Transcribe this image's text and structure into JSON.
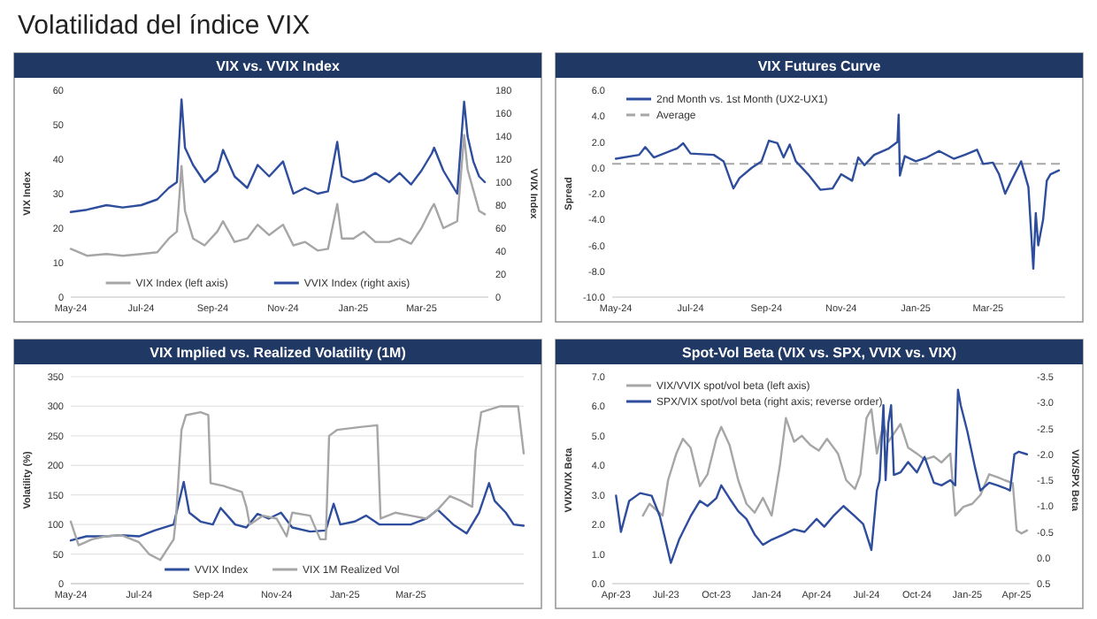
{
  "chart_data": [
    {
      "type": "other",
      "title": "Volatilidad del índice VIX"
    },
    {
      "type": "line",
      "title": "VIX vs. VVIX Index",
      "ylabel": "VIX Index",
      "y2label": "VVIX Index",
      "legend": "bottom",
      "xlim": [
        "2024-05-01",
        "2025-04-28"
      ],
      "xticks": [
        {
          "value": "2024-05-01",
          "label": "May-24"
        },
        {
          "value": "2024-07-01",
          "label": "Jul-24"
        },
        {
          "value": "2024-09-01",
          "label": "Sep-24"
        },
        {
          "value": "2024-11-01",
          "label": "Nov-24"
        },
        {
          "value": "2025-01-01",
          "label": "Jan-25"
        },
        {
          "value": "2025-03-01",
          "label": "Mar-25"
        }
      ],
      "ylim": [
        0,
        60
      ],
      "yticks": [
        0,
        10,
        20,
        30,
        40,
        50,
        60
      ],
      "y2lim": [
        0,
        180
      ],
      "y2ticks": [
        0,
        20,
        40,
        60,
        80,
        100,
        120,
        140,
        160,
        180
      ],
      "x": [
        "2024-05-01",
        "2024-05-15",
        "2024-06-01",
        "2024-06-15",
        "2024-07-01",
        "2024-07-15",
        "2024-07-25",
        "2024-08-01",
        "2024-08-05",
        "2024-08-08",
        "2024-08-15",
        "2024-08-25",
        "2024-09-05",
        "2024-09-10",
        "2024-09-20",
        "2024-10-01",
        "2024-10-10",
        "2024-10-20",
        "2024-11-01",
        "2024-11-10",
        "2024-11-20",
        "2024-12-01",
        "2024-12-10",
        "2024-12-18",
        "2024-12-22",
        "2025-01-01",
        "2025-01-10",
        "2025-01-20",
        "2025-02-01",
        "2025-02-10",
        "2025-02-20",
        "2025-03-01",
        "2025-03-10",
        "2025-03-12",
        "2025-03-20",
        "2025-04-01",
        "2025-04-07",
        "2025-04-10",
        "2025-04-15",
        "2025-04-20",
        "2025-04-25"
      ],
      "series": [
        {
          "name": "VIX Index (left axis)",
          "color": "#a6a6a6",
          "values": [
            14,
            12,
            12.5,
            12,
            12.5,
            13,
            17,
            19,
            38,
            25,
            17,
            15,
            19,
            22,
            16,
            17,
            21,
            18,
            21,
            15,
            16,
            13.5,
            14,
            27,
            17,
            17,
            19,
            16,
            16,
            17,
            15.5,
            20,
            26,
            27,
            20,
            22,
            47,
            37,
            31,
            25,
            24
          ]
        },
        {
          "name": "VVIX Index (right axis)",
          "color": "#2e4d9c",
          "axis": "y2",
          "values": [
            74,
            76,
            80,
            78,
            80,
            85,
            95,
            100,
            172,
            130,
            115,
            100,
            110,
            128,
            105,
            95,
            115,
            105,
            118,
            90,
            95,
            90,
            92,
            135,
            105,
            100,
            102,
            108,
            100,
            108,
            98,
            110,
            125,
            130,
            110,
            90,
            170,
            140,
            118,
            105,
            100
          ]
        }
      ]
    },
    {
      "type": "line",
      "title": "VIX Futures Curve",
      "ylabel": "Spread",
      "legend": "top left",
      "xlim": [
        "2024-04-28",
        "2025-05-03"
      ],
      "xticks": [
        {
          "value": "2024-05-01",
          "label": "May-24"
        },
        {
          "value": "2024-07-01",
          "label": "Jul-24"
        },
        {
          "value": "2024-09-01",
          "label": "Sep-24"
        },
        {
          "value": "2024-11-01",
          "label": "Nov-24"
        },
        {
          "value": "2025-01-01",
          "label": "Jan-25"
        },
        {
          "value": "2025-03-01",
          "label": "Mar-25"
        }
      ],
      "ylim": [
        -10,
        6
      ],
      "yticks": [
        {
          "value": -10,
          "label": "-10.0"
        },
        {
          "value": -8,
          "label": "-8.0"
        },
        {
          "value": -6,
          "label": "-6.0"
        },
        {
          "value": -4,
          "label": "-4.0"
        },
        {
          "value": -2,
          "label": "-2.0"
        },
        {
          "value": 0,
          "label": "0.0"
        },
        {
          "value": 2,
          "label": "2.0"
        },
        {
          "value": 4,
          "label": "4.0"
        },
        {
          "value": 6,
          "label": "6.0"
        }
      ],
      "ref_lines": [
        {
          "axis": "y",
          "value": 0.3,
          "label": "Average",
          "color": "#a6a6a6",
          "line_style": "dashed"
        }
      ],
      "series": [
        {
          "name": "2nd Month vs. 1st Month (UX2-UX1)",
          "color": "#2e4d9c",
          "x": [
            "2024-05-01",
            "2024-05-20",
            "2024-05-25",
            "2024-06-01",
            "2024-06-20",
            "2024-06-25",
            "2024-07-01",
            "2024-07-20",
            "2024-07-28",
            "2024-08-05",
            "2024-08-10",
            "2024-08-20",
            "2024-08-28",
            "2024-09-03",
            "2024-09-10",
            "2024-09-15",
            "2024-09-20",
            "2024-09-25",
            "2024-10-05",
            "2024-10-15",
            "2024-10-25",
            "2024-11-01",
            "2024-11-10",
            "2024-11-15",
            "2024-11-20",
            "2024-11-28",
            "2024-12-10",
            "2024-12-17",
            "2024-12-18",
            "2024-12-19",
            "2024-12-23",
            "2025-01-01",
            "2025-01-10",
            "2025-01-20",
            "2025-02-01",
            "2025-02-10",
            "2025-02-20",
            "2025-02-25",
            "2025-03-05",
            "2025-03-10",
            "2025-03-15",
            "2025-03-20",
            "2025-03-28",
            "2025-04-03",
            "2025-04-07",
            "2025-04-09",
            "2025-04-11",
            "2025-04-15",
            "2025-04-18",
            "2025-04-21",
            "2025-04-28"
          ],
          "values": [
            0.7,
            1.0,
            1.6,
            0.8,
            1.5,
            1.9,
            1.1,
            1.0,
            0.5,
            -1.6,
            -0.8,
            0.0,
            0.5,
            2.1,
            1.9,
            0.8,
            1.8,
            0.5,
            -0.5,
            -1.7,
            -1.6,
            -0.5,
            -1.0,
            0.8,
            0.2,
            1.0,
            1.5,
            2.0,
            4.1,
            -0.6,
            0.9,
            0.5,
            0.8,
            1.3,
            0.7,
            1.0,
            1.4,
            0.3,
            0.4,
            -0.5,
            -2.0,
            -1.0,
            0.5,
            -1.5,
            -7.8,
            -3.5,
            -6.0,
            -4.0,
            -1.0,
            -0.5,
            -0.2
          ]
        }
      ]
    },
    {
      "type": "line",
      "title": "VIX Implied vs. Realized Volatility (1M)",
      "ylabel": "Volatility (%)",
      "legend": "bottom",
      "grid": "y",
      "xlim": [
        "2024-05-01",
        "2025-06-10"
      ],
      "xticks": [
        {
          "value": "2024-05-01",
          "label": "May-24"
        },
        {
          "value": "2024-07-01",
          "label": "Jul-24"
        },
        {
          "value": "2024-09-01",
          "label": "Sep-24"
        },
        {
          "value": "2024-11-01",
          "label": "Nov-24"
        },
        {
          "value": "2025-01-01",
          "label": "Jan-25"
        },
        {
          "value": "2025-03-01",
          "label": "Mar-25"
        }
      ],
      "ylim": [
        0,
        350
      ],
      "yticks": [
        0,
        50,
        100,
        150,
        200,
        250,
        300,
        350
      ],
      "series": [
        {
          "name": "VVIX Index",
          "color": "#2e4d9c",
          "x": [
            "2024-05-01",
            "2024-05-15",
            "2024-06-01",
            "2024-06-15",
            "2024-07-01",
            "2024-07-15",
            "2024-08-01",
            "2024-08-10",
            "2024-08-15",
            "2024-08-25",
            "2024-09-05",
            "2024-09-12",
            "2024-09-25",
            "2024-10-05",
            "2024-10-15",
            "2024-10-25",
            "2024-11-05",
            "2024-11-15",
            "2024-12-01",
            "2024-12-15",
            "2024-12-22",
            "2024-12-28",
            "2025-01-10",
            "2025-01-20",
            "2025-02-01",
            "2025-02-15",
            "2025-03-01",
            "2025-03-15",
            "2025-03-25",
            "2025-04-08",
            "2025-04-20",
            "2025-05-01",
            "2025-05-10",
            "2025-05-15",
            "2025-05-25",
            "2025-06-01",
            "2025-06-10"
          ],
          "values": [
            73,
            80,
            80,
            82,
            80,
            90,
            100,
            172,
            120,
            105,
            100,
            128,
            100,
            95,
            118,
            110,
            120,
            95,
            88,
            90,
            135,
            100,
            105,
            115,
            100,
            100,
            100,
            110,
            125,
            100,
            85,
            120,
            170,
            140,
            120,
            100,
            98
          ]
        },
        {
          "name": "VIX 1M Realized Vol",
          "color": "#a6a6a6",
          "x": [
            "2024-05-01",
            "2024-05-08",
            "2024-05-20",
            "2024-06-01",
            "2024-06-15",
            "2024-07-01",
            "2024-07-10",
            "2024-07-20",
            "2024-08-01",
            "2024-08-03",
            "2024-08-08",
            "2024-08-12",
            "2024-08-25",
            "2024-09-01",
            "2024-09-03",
            "2024-09-15",
            "2024-10-01",
            "2024-10-05",
            "2024-10-08",
            "2024-10-20",
            "2024-11-01",
            "2024-11-10",
            "2024-11-15",
            "2024-12-01",
            "2024-12-10",
            "2024-12-15",
            "2024-12-18",
            "2024-12-25",
            "2025-01-15",
            "2025-01-30",
            "2025-02-02",
            "2025-02-15",
            "2025-03-01",
            "2025-03-15",
            "2025-03-25",
            "2025-04-05",
            "2025-04-15",
            "2025-04-25",
            "2025-04-28",
            "2025-05-03",
            "2025-05-20",
            "2025-06-05",
            "2025-06-10"
          ],
          "values": [
            105,
            65,
            75,
            80,
            82,
            70,
            50,
            40,
            75,
            110,
            260,
            285,
            290,
            285,
            170,
            165,
            155,
            130,
            100,
            115,
            110,
            80,
            120,
            115,
            75,
            75,
            250,
            260,
            265,
            268,
            110,
            120,
            115,
            110,
            125,
            148,
            140,
            130,
            225,
            290,
            300,
            300,
            220
          ]
        }
      ]
    },
    {
      "type": "line",
      "title": "Spot-Vol Beta (VIX vs. SPX, VVIX vs. VIX)",
      "ylabel": "VVIX/VIX Beta",
      "y2label": "VIX/SPX Beta",
      "legend": "top left",
      "xlim": [
        "2023-03-25",
        "2025-04-25"
      ],
      "xticks": [
        {
          "value": "2023-04-01",
          "label": "Apr-23"
        },
        {
          "value": "2023-07-01",
          "label": "Jul-23"
        },
        {
          "value": "2023-10-01",
          "label": "Oct-23"
        },
        {
          "value": "2024-01-01",
          "label": "Jan-24"
        },
        {
          "value": "2024-04-01",
          "label": "Apr-24"
        },
        {
          "value": "2024-07-01",
          "label": "Jul-24"
        },
        {
          "value": "2024-10-01",
          "label": "Oct-24"
        },
        {
          "value": "2025-01-01",
          "label": "Jan-25"
        },
        {
          "value": "2025-04-01",
          "label": "Apr-25"
        }
      ],
      "ylim": [
        0,
        7
      ],
      "yticks": [
        {
          "value": 0,
          "label": "0.0"
        },
        {
          "value": 1,
          "label": "1.0"
        },
        {
          "value": 2,
          "label": "2.0"
        },
        {
          "value": 3,
          "label": "3.0"
        },
        {
          "value": 4,
          "label": "4.0"
        },
        {
          "value": 5,
          "label": "5.0"
        },
        {
          "value": 6,
          "label": "6.0"
        },
        {
          "value": 7,
          "label": "7.0"
        }
      ],
      "y2lim": [
        0.5,
        -3.5
      ],
      "y2ticks": [
        {
          "value": 0.5,
          "label": "0.5"
        },
        {
          "value": 0,
          "label": "0.0"
        },
        {
          "value": -0.5,
          "label": "-0.5"
        },
        {
          "value": -1,
          "label": "-1.0"
        },
        {
          "value": -1.5,
          "label": "-1.5"
        },
        {
          "value": -2,
          "label": "-2.0"
        },
        {
          "value": -2.5,
          "label": "-2.5"
        },
        {
          "value": -3,
          "label": "-3.0"
        },
        {
          "value": -3.5,
          "label": "-3.5"
        }
      ],
      "series": [
        {
          "name": "VIX/VVIX spot/vol beta (left axis)",
          "color": "#a6a6a6",
          "x": [
            "2023-05-20",
            "2023-06-01",
            "2023-06-25",
            "2023-07-05",
            "2023-07-20",
            "2023-08-01",
            "2023-08-15",
            "2023-09-01",
            "2023-09-15",
            "2023-10-01",
            "2023-10-10",
            "2023-10-25",
            "2023-11-10",
            "2023-11-25",
            "2023-12-10",
            "2023-12-25",
            "2024-01-10",
            "2024-01-25",
            "2024-02-05",
            "2024-02-20",
            "2024-03-05",
            "2024-03-20",
            "2024-04-05",
            "2024-04-20",
            "2024-05-10",
            "2024-05-25",
            "2024-06-10",
            "2024-06-20",
            "2024-07-01",
            "2024-07-10",
            "2024-07-20",
            "2024-08-01",
            "2024-08-10",
            "2024-09-01",
            "2024-09-15",
            "2024-10-01",
            "2024-10-15",
            "2024-11-01",
            "2024-11-15",
            "2024-12-01",
            "2024-12-10",
            "2024-12-25",
            "2025-01-10",
            "2025-01-25",
            "2025-02-10",
            "2025-02-25",
            "2025-03-10",
            "2025-03-25",
            "2025-04-01",
            "2025-04-10",
            "2025-04-20"
          ],
          "values": [
            2.3,
            2.7,
            2.3,
            3.5,
            4.4,
            4.9,
            4.6,
            3.3,
            3.7,
            4.9,
            5.3,
            4.7,
            3.5,
            2.7,
            2.4,
            2.9,
            2.3,
            4.0,
            5.6,
            4.8,
            5.0,
            4.7,
            4.5,
            4.9,
            4.4,
            3.5,
            3.2,
            3.7,
            5.6,
            5.9,
            4.4,
            5.4,
            4.8,
            5.4,
            4.6,
            4.4,
            4.2,
            4.3,
            4.1,
            4.4,
            2.3,
            2.6,
            2.7,
            3.0,
            3.7,
            3.6,
            3.5,
            3.4,
            1.8,
            1.7,
            1.8
          ]
        },
        {
          "name": "SPX/VIX spot/vol beta (right axis; reverse order)",
          "color": "#2e4d9c",
          "axis": "y2",
          "x": [
            "2023-04-01",
            "2023-04-10",
            "2023-04-25",
            "2023-05-15",
            "2023-06-05",
            "2023-06-20",
            "2023-07-10",
            "2023-07-25",
            "2023-08-15",
            "2023-09-01",
            "2023-09-15",
            "2023-10-01",
            "2023-10-10",
            "2023-10-25",
            "2023-11-10",
            "2023-11-25",
            "2023-12-10",
            "2023-12-25",
            "2024-01-10",
            "2024-02-01",
            "2024-02-20",
            "2024-03-10",
            "2024-04-01",
            "2024-04-15",
            "2024-05-01",
            "2024-05-20",
            "2024-06-10",
            "2024-06-25",
            "2024-07-10",
            "2024-07-20",
            "2024-07-25",
            "2024-08-01",
            "2024-08-05",
            "2024-08-10",
            "2024-08-15",
            "2024-08-20",
            "2024-09-01",
            "2024-09-15",
            "2024-10-01",
            "2024-10-15",
            "2024-11-01",
            "2024-11-15",
            "2024-12-01",
            "2024-12-10",
            "2024-12-15",
            "2024-12-20",
            "2025-01-01",
            "2025-01-15",
            "2025-01-25",
            "2025-02-10",
            "2025-02-25",
            "2025-03-10",
            "2025-03-20",
            "2025-03-28",
            "2025-04-05",
            "2025-04-20"
          ],
          "values": [
            -1.2,
            -0.5,
            -1.1,
            -1.25,
            -1.2,
            -0.8,
            0.1,
            -0.35,
            -0.8,
            -1.1,
            -1.0,
            -1.15,
            -1.4,
            -1.15,
            -0.9,
            -0.75,
            -0.45,
            -0.25,
            -0.35,
            -0.45,
            -0.55,
            -0.5,
            -0.75,
            -0.6,
            -0.8,
            -1.0,
            -0.8,
            -0.65,
            -0.15,
            -1.3,
            -1.5,
            -2.95,
            -1.5,
            -2.6,
            -2.95,
            -1.6,
            -1.65,
            -1.85,
            -1.65,
            -1.95,
            -1.45,
            -1.4,
            -1.5,
            -1.4,
            -3.25,
            -2.95,
            -2.45,
            -1.75,
            -1.3,
            -1.45,
            -1.4,
            -1.35,
            -1.3,
            -2.0,
            -2.05,
            -2.0
          ]
        }
      ]
    }
  ]
}
